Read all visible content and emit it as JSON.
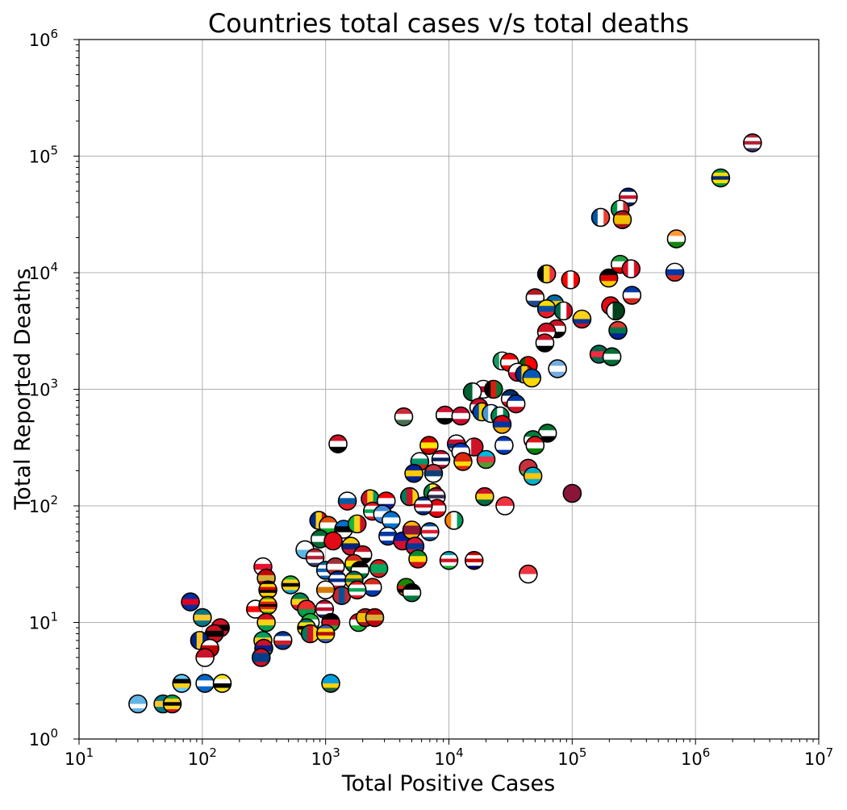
{
  "chart_data": {
    "type": "scatter",
    "title": "Countries total cases v/s total deaths",
    "xlabel": "Total Positive Cases",
    "ylabel": "Total Reported Deaths",
    "xscale": "log",
    "yscale": "log",
    "xlim": [
      10,
      10000000
    ],
    "ylim": [
      1,
      1000000
    ],
    "grid": true,
    "marker": "circular country flag icons",
    "x_ticks": [
      {
        "base": "10",
        "exp": "1"
      },
      {
        "base": "10",
        "exp": "2"
      },
      {
        "base": "10",
        "exp": "3"
      },
      {
        "base": "10",
        "exp": "4"
      },
      {
        "base": "10",
        "exp": "5"
      },
      {
        "base": "10",
        "exp": "6"
      },
      {
        "base": "10",
        "exp": "7"
      }
    ],
    "y_ticks": [
      {
        "base": "10",
        "exp": "0"
      },
      {
        "base": "10",
        "exp": "1"
      },
      {
        "base": "10",
        "exp": "2"
      },
      {
        "base": "10",
        "exp": "3"
      },
      {
        "base": "10",
        "exp": "4"
      },
      {
        "base": "10",
        "exp": "5"
      },
      {
        "base": "10",
        "exp": "6"
      }
    ],
    "points": [
      {
        "x": 2900000,
        "y": 130000,
        "flag": "usa"
      },
      {
        "x": 1600000,
        "y": 65000,
        "flag": "brazil"
      },
      {
        "x": 285000,
        "y": 44500,
        "flag": "uk"
      },
      {
        "x": 245000,
        "y": 35000,
        "flag": "italy"
      },
      {
        "x": 255000,
        "y": 28500,
        "flag": "spain"
      },
      {
        "x": 170000,
        "y": 29800,
        "flag": "france"
      },
      {
        "x": 700000,
        "y": 19500,
        "flag": "india"
      },
      {
        "x": 245000,
        "y": 11800,
        "flag": "iran"
      },
      {
        "x": 300000,
        "y": 10800,
        "flag": "peru"
      },
      {
        "x": 680000,
        "y": 10100,
        "flag": "russia"
      },
      {
        "x": 62000,
        "y": 9750,
        "flag": "belgium"
      },
      {
        "x": 97000,
        "y": 8700,
        "flag": "canada"
      },
      {
        "x": 198000,
        "y": 9000,
        "flag": "germany"
      },
      {
        "x": 50000,
        "y": 6100,
        "flag": "netherlands"
      },
      {
        "x": 72000,
        "y": 5400,
        "flag": "sweden"
      },
      {
        "x": 62000,
        "y": 4900,
        "flag": "ecuador"
      },
      {
        "x": 85000,
        "y": 4700,
        "flag": "mexico"
      },
      {
        "x": 120000,
        "y": 4000,
        "flag": "colombia"
      },
      {
        "x": 205000,
        "y": 5200,
        "flag": "turkey"
      },
      {
        "x": 225000,
        "y": 4700,
        "flag": "pakistan"
      },
      {
        "x": 305000,
        "y": 6400,
        "flag": "chile"
      },
      {
        "x": 75000,
        "y": 3300,
        "flag": "egypt"
      },
      {
        "x": 62000,
        "y": 3100,
        "flag": "indonesia"
      },
      {
        "x": 60000,
        "y": 2500,
        "flag": "iraq"
      },
      {
        "x": 235000,
        "y": 3200,
        "flag": "south-africa"
      },
      {
        "x": 165000,
        "y": 2000,
        "flag": "bangladesh"
      },
      {
        "x": 210000,
        "y": 1900,
        "flag": "saudi-arabia"
      },
      {
        "x": 76000,
        "y": 1500,
        "flag": "argentina"
      },
      {
        "x": 27000,
        "y": 1750,
        "flag": "ireland"
      },
      {
        "x": 31000,
        "y": 1700,
        "flag": "switzerland"
      },
      {
        "x": 44000,
        "y": 1600,
        "flag": "portugal"
      },
      {
        "x": 36000,
        "y": 1400,
        "flag": "poland"
      },
      {
        "x": 41000,
        "y": 1350,
        "flag": "romania"
      },
      {
        "x": 47000,
        "y": 1250,
        "flag": "ukraine"
      },
      {
        "x": 19000,
        "y": 1000,
        "flag": "japan"
      },
      {
        "x": 15500,
        "y": 950,
        "flag": "algeria"
      },
      {
        "x": 23000,
        "y": 1000,
        "flag": "afghanistan"
      },
      {
        "x": 31500,
        "y": 830,
        "flag": "dominican-republic"
      },
      {
        "x": 35000,
        "y": 750,
        "flag": "philippines"
      },
      {
        "x": 17500,
        "y": 700,
        "flag": "denmark"
      },
      {
        "x": 18500,
        "y": 640,
        "flag": "moldova"
      },
      {
        "x": 22000,
        "y": 620,
        "flag": "guatemala"
      },
      {
        "x": 26000,
        "y": 590,
        "flag": "nigeria"
      },
      {
        "x": 27000,
        "y": 500,
        "flag": "armenia"
      },
      {
        "x": 9300,
        "y": 600,
        "flag": "sudan"
      },
      {
        "x": 12500,
        "y": 590,
        "flag": "denmark"
      },
      {
        "x": 4300,
        "y": 580,
        "flag": "hungary"
      },
      {
        "x": 1260,
        "y": 340,
        "flag": "yemen"
      },
      {
        "x": 6900,
        "y": 330,
        "flag": "north-macedonia"
      },
      {
        "x": 11500,
        "y": 340,
        "flag": "korea"
      },
      {
        "x": 16000,
        "y": 320,
        "flag": "bahrain"
      },
      {
        "x": 12500,
        "y": 290,
        "flag": "israel"
      },
      {
        "x": 28000,
        "y": 330,
        "flag": "israel"
      },
      {
        "x": 13000,
        "y": 240,
        "flag": "china"
      },
      {
        "x": 20000,
        "y": 250,
        "flag": "azerbaijan"
      },
      {
        "x": 8600,
        "y": 250,
        "flag": "norway"
      },
      {
        "x": 5800,
        "y": 240,
        "flag": "bulgaria"
      },
      {
        "x": 63000,
        "y": 420,
        "flag": "uae"
      },
      {
        "x": 48000,
        "y": 370,
        "flag": "kuwait"
      },
      {
        "x": 50000,
        "y": 330,
        "flag": "oman"
      },
      {
        "x": 44000,
        "y": 210,
        "flag": "belarus"
      },
      {
        "x": 48000,
        "y": 180,
        "flag": "kazakhstan"
      },
      {
        "x": 5200,
        "y": 190,
        "flag": "bosnia"
      },
      {
        "x": 7500,
        "y": 190,
        "flag": "serbia"
      },
      {
        "x": 100000,
        "y": 128,
        "flag": "qatar"
      },
      {
        "x": 19500,
        "y": 120,
        "flag": "ghana"
      },
      {
        "x": 28500,
        "y": 100,
        "flag": "singapore"
      },
      {
        "x": 1500,
        "y": 110,
        "flag": "slovenia"
      },
      {
        "x": 2300,
        "y": 115,
        "flag": "guinea"
      },
      {
        "x": 3100,
        "y": 110,
        "flag": "croatia"
      },
      {
        "x": 4800,
        "y": 120,
        "flag": "cameroon"
      },
      {
        "x": 7400,
        "y": 130,
        "flag": "senegal"
      },
      {
        "x": 7900,
        "y": 120,
        "flag": "thailand"
      },
      {
        "x": 8000,
        "y": 95,
        "flag": "tunisia"
      },
      {
        "x": 6200,
        "y": 100,
        "flag": "costa-rica"
      },
      {
        "x": 11000,
        "y": 75,
        "flag": "ivory-coast"
      },
      {
        "x": 2400,
        "y": 90,
        "flag": "lebanon"
      },
      {
        "x": 2900,
        "y": 85,
        "flag": "somalia"
      },
      {
        "x": 3400,
        "y": 75,
        "flag": "honduras"
      },
      {
        "x": 880,
        "y": 75,
        "flag": "romania"
      },
      {
        "x": 1050,
        "y": 68,
        "flag": "niger"
      },
      {
        "x": 1400,
        "y": 63,
        "flag": "estonia"
      },
      {
        "x": 1800,
        "y": 70,
        "flag": "mali"
      },
      {
        "x": 900,
        "y": 52,
        "flag": "saudi-arabia"
      },
      {
        "x": 1150,
        "y": 50,
        "flag": "turkey"
      },
      {
        "x": 1600,
        "y": 45,
        "flag": "venezuela"
      },
      {
        "x": 2000,
        "y": 38,
        "flag": "egypt"
      },
      {
        "x": 2700,
        "y": 29,
        "flag": "mauritania"
      },
      {
        "x": 3200,
        "y": 55,
        "flag": "uruguay"
      },
      {
        "x": 4200,
        "y": 50,
        "flag": "haiti"
      },
      {
        "x": 5000,
        "y": 62,
        "flag": "sri-lanka"
      },
      {
        "x": 5300,
        "y": 45,
        "flag": "nepal"
      },
      {
        "x": 5600,
        "y": 35,
        "flag": "ethiopia"
      },
      {
        "x": 7000,
        "y": 60,
        "flag": "iceland"
      },
      {
        "x": 10000,
        "y": 34,
        "flag": "uzbekistan"
      },
      {
        "x": 16000,
        "y": 34,
        "flag": "malaysia"
      },
      {
        "x": 44000,
        "y": 26,
        "flag": "singapore"
      },
      {
        "x": 680,
        "y": 42,
        "flag": "san-marino"
      },
      {
        "x": 820,
        "y": 36,
        "flag": "usa"
      },
      {
        "x": 1000,
        "y": 28,
        "flag": "greece"
      },
      {
        "x": 1200,
        "y": 30,
        "flag": "latvia"
      },
      {
        "x": 1700,
        "y": 32,
        "flag": "bolivia"
      },
      {
        "x": 1900,
        "y": 28,
        "flag": "palestine"
      },
      {
        "x": 310,
        "y": 30,
        "flag": "jersey"
      },
      {
        "x": 330,
        "y": 24,
        "flag": "montenegro"
      },
      {
        "x": 340,
        "y": 19,
        "flag": "uganda"
      },
      {
        "x": 520,
        "y": 21,
        "flag": "tanzania"
      },
      {
        "x": 1250,
        "y": 23,
        "flag": "cuba"
      },
      {
        "x": 1700,
        "y": 23,
        "flag": "togo"
      },
      {
        "x": 2400,
        "y": 20,
        "flag": "paraguay"
      },
      {
        "x": 4500,
        "y": 20,
        "flag": "zambia"
      },
      {
        "x": 5000,
        "y": 18,
        "flag": "jordan"
      },
      {
        "x": 1350,
        "y": 17,
        "flag": "mongolia"
      },
      {
        "x": 1800,
        "y": 19,
        "flag": "lebanon"
      },
      {
        "x": 1000,
        "y": 19,
        "flag": "cyprus"
      },
      {
        "x": 80,
        "y": 15,
        "flag": "cambodia"
      },
      {
        "x": 270,
        "y": 13,
        "flag": "georgia"
      },
      {
        "x": 340,
        "y": 14,
        "flag": "zimbabwe"
      },
      {
        "x": 620,
        "y": 15,
        "flag": "benin"
      },
      {
        "x": 700,
        "y": 13,
        "flag": "burkina-faso"
      },
      {
        "x": 980,
        "y": 13,
        "flag": "liberia"
      },
      {
        "x": 100,
        "y": 11,
        "flag": "bahamas"
      },
      {
        "x": 330,
        "y": 10,
        "flag": "guinea-bissau"
      },
      {
        "x": 750,
        "y": 10,
        "flag": "sierra-leone"
      },
      {
        "x": 1100,
        "y": 10,
        "flag": "malawi"
      },
      {
        "x": 1850,
        "y": 10,
        "flag": "burundi"
      },
      {
        "x": 2100,
        "y": 11,
        "flag": "spain"
      },
      {
        "x": 2500,
        "y": 11,
        "flag": "montenegro"
      },
      {
        "x": 140,
        "y": 9,
        "flag": "trinidad"
      },
      {
        "x": 125,
        "y": 8,
        "flag": "trinidad"
      },
      {
        "x": 700,
        "y": 9,
        "flag": "mozambique"
      },
      {
        "x": 750,
        "y": 8,
        "flag": "cameroon"
      },
      {
        "x": 1000,
        "y": 8,
        "flag": "eswatini"
      },
      {
        "x": 95,
        "y": 7,
        "flag": "barbados"
      },
      {
        "x": 450,
        "y": 7,
        "flag": "cape-verde"
      },
      {
        "x": 310,
        "y": 7,
        "flag": "gabon"
      },
      {
        "x": 315,
        "y": 6,
        "flag": "gambia"
      },
      {
        "x": 115,
        "y": 6,
        "flag": "tonga"
      },
      {
        "x": 105,
        "y": 5,
        "flag": "monaco"
      },
      {
        "x": 300,
        "y": 5,
        "flag": "belize"
      },
      {
        "x": 68,
        "y": 3,
        "flag": "saint-lucia"
      },
      {
        "x": 105,
        "y": 3,
        "flag": "nicaragua"
      },
      {
        "x": 145,
        "y": 3,
        "flag": "brunei"
      },
      {
        "x": 1100,
        "y": 3,
        "flag": "rwanda"
      },
      {
        "x": 30,
        "y": 2,
        "flag": "fiji"
      },
      {
        "x": 48,
        "y": 2,
        "flag": "bahamas"
      },
      {
        "x": 57,
        "y": 2,
        "flag": "saint-kitts"
      }
    ]
  }
}
